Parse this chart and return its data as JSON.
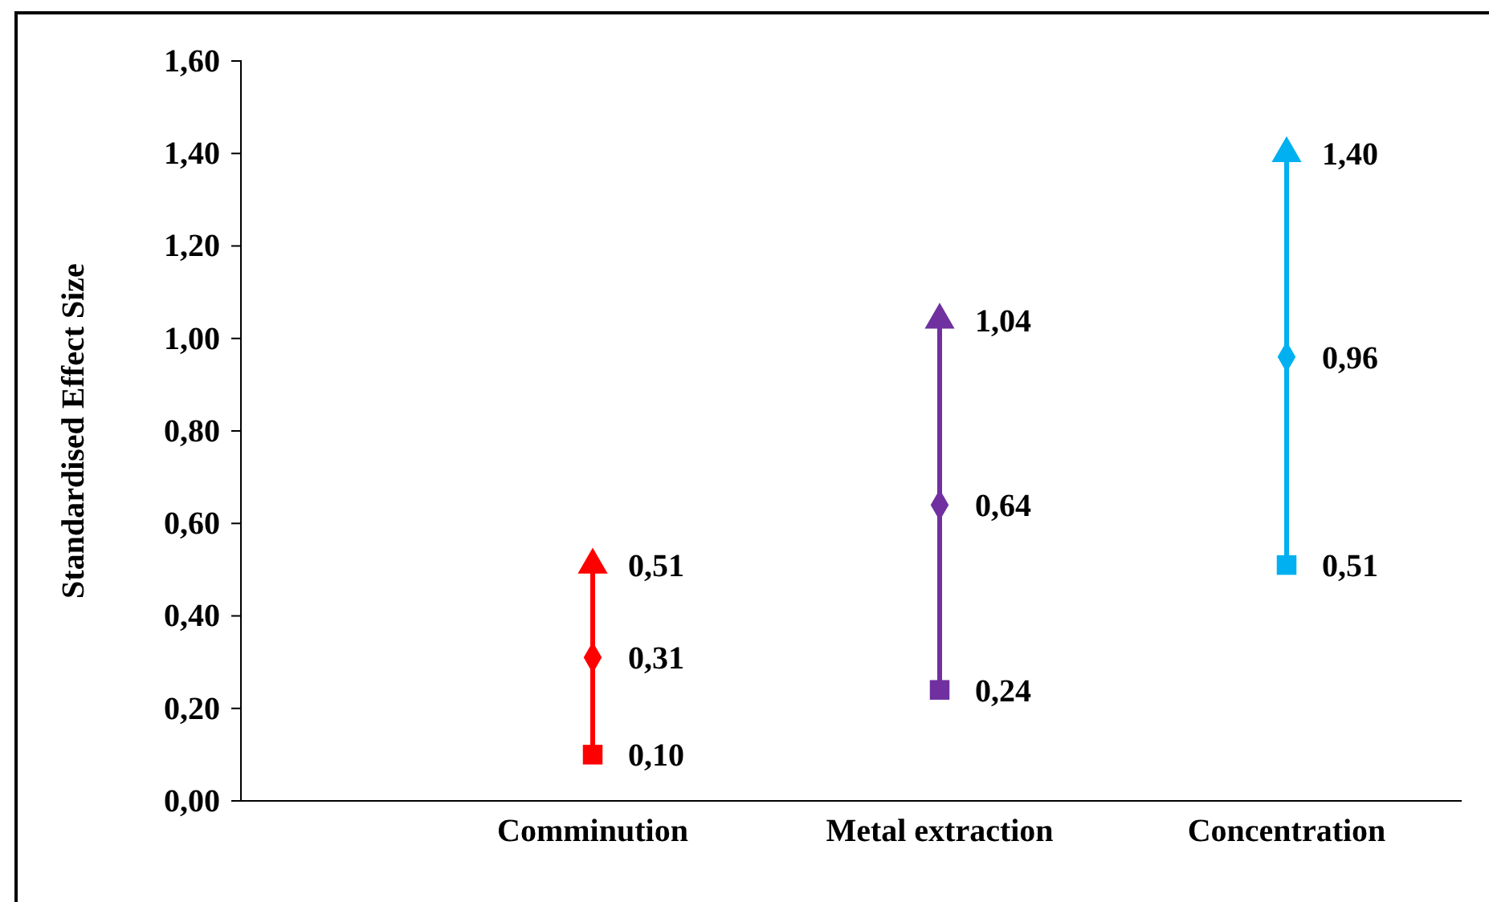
{
  "chart_data": {
    "type": "scatter",
    "ylabel": "Standardised Effect Size",
    "categories": [
      "Comminution",
      "Metal extraction",
      "Concentration"
    ],
    "ylim": [
      0,
      1.6
    ],
    "yticks": [
      {
        "value": 0,
        "label": "0,00"
      },
      {
        "value": 0.2,
        "label": "0,20"
      },
      {
        "value": 0.4,
        "label": "0,40"
      },
      {
        "value": 0.6,
        "label": "0,60"
      },
      {
        "value": 0.8,
        "label": "0,80"
      },
      {
        "value": 1,
        "label": "1,00"
      },
      {
        "value": 1.2,
        "label": "1,20"
      },
      {
        "value": 1.4,
        "label": "1,40"
      },
      {
        "value": 1.6,
        "label": "1,60"
      }
    ],
    "grid": false,
    "series": [
      {
        "marker": "square",
        "colors": [
          "#ff0000",
          "#7030a0",
          "#00b0f0"
        ],
        "values": [
          0.1,
          0.24,
          0.51
        ],
        "value_labels": [
          "0,10",
          "0,24",
          "0,51"
        ]
      },
      {
        "marker": "diamond",
        "colors": [
          "#ff0000",
          "#7030a0",
          "#00b0f0"
        ],
        "values": [
          0.31,
          0.64,
          0.96
        ],
        "value_labels": [
          "0,31",
          "0,64",
          "0,96"
        ]
      },
      {
        "marker": "triangle",
        "colors": [
          "#ff0000",
          "#7030a0",
          "#00b0f0"
        ],
        "values": [
          0.51,
          1.04,
          1.4
        ],
        "value_labels": [
          "0,51",
          "1,04",
          "1,40"
        ]
      }
    ]
  }
}
